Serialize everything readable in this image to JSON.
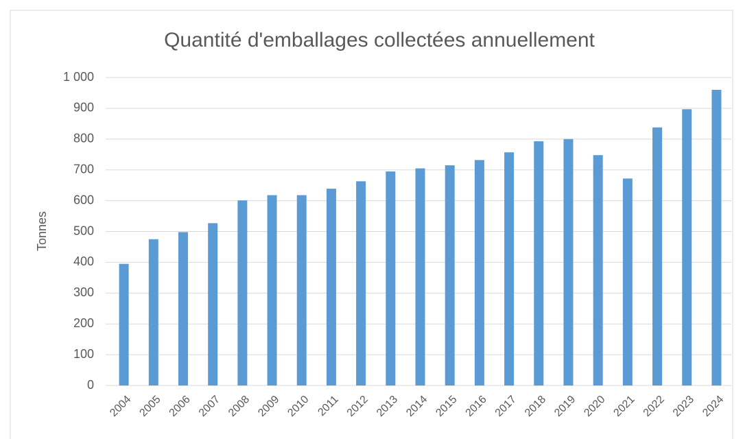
{
  "chart_data": {
    "type": "bar",
    "title": "Quantité d'emballages collectées annuellement",
    "y_label": "Tonnes",
    "categories": [
      "2004",
      "2005",
      "2006",
      "2007",
      "2008",
      "2009",
      "2010",
      "2011",
      "2012",
      "2013",
      "2014",
      "2015",
      "2016",
      "2017",
      "2018",
      "2019",
      "2020",
      "2021",
      "2022",
      "2023",
      "2024"
    ],
    "values": [
      395,
      475,
      498,
      527,
      601,
      618,
      618,
      639,
      663,
      695,
      705,
      715,
      732,
      757,
      793,
      800,
      748,
      672,
      838,
      897,
      960
    ],
    "color": "#5b9bd5",
    "ylim": [
      0,
      1000
    ],
    "yticks": [
      0,
      100,
      200,
      300,
      400,
      500,
      600,
      700,
      800,
      900,
      {
        "value": 1000,
        "label": "1 000"
      }
    ],
    "grid": true
  }
}
